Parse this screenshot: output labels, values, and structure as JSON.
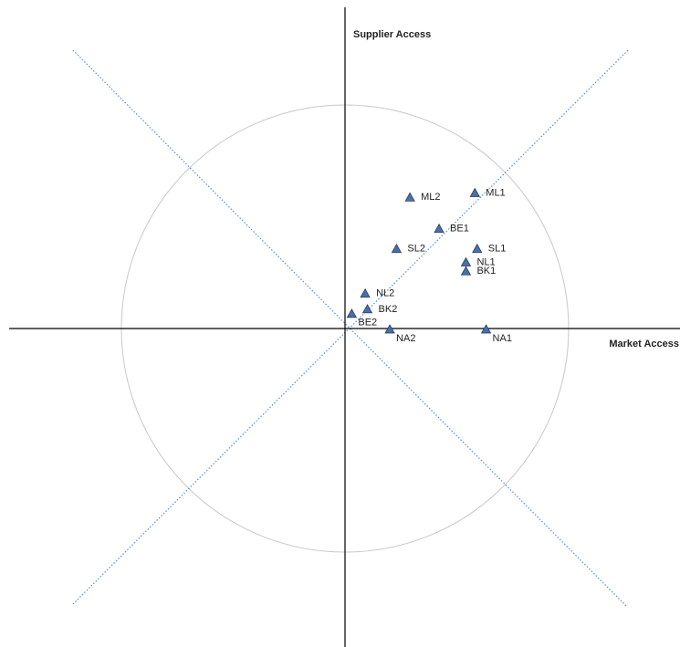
{
  "chart_data": {
    "type": "scatter",
    "x_label": "Market Access",
    "y_label": "Supplier Access",
    "xlim": [
      -1.5,
      1.5
    ],
    "ylim": [
      -1.42,
      1.44
    ],
    "color": "#4a70a8",
    "marker": "triangle",
    "points": [
      {
        "label": "ML2",
        "x": 0.29,
        "y": 0.59
      },
      {
        "label": "ML1",
        "x": 0.58,
        "y": 0.61
      },
      {
        "label": "BE1",
        "x": 0.42,
        "y": 0.45
      },
      {
        "label": "SL2",
        "x": 0.23,
        "y": 0.36
      },
      {
        "label": "SL1",
        "x": 0.59,
        "y": 0.36
      },
      {
        "label": "NL1",
        "x": 0.54,
        "y": 0.3
      },
      {
        "label": "BK1",
        "x": 0.54,
        "y": 0.26
      },
      {
        "label": "NL2",
        "x": 0.09,
        "y": 0.16
      },
      {
        "label": "BK2",
        "x": 0.1,
        "y": 0.09
      },
      {
        "label": "BE2",
        "x": 0.03,
        "y": 0.07
      },
      {
        "label": "NA2",
        "x": 0.2,
        "y": 0.0
      },
      {
        "label": "NA1",
        "x": 0.63,
        "y": 0.0
      }
    ]
  }
}
